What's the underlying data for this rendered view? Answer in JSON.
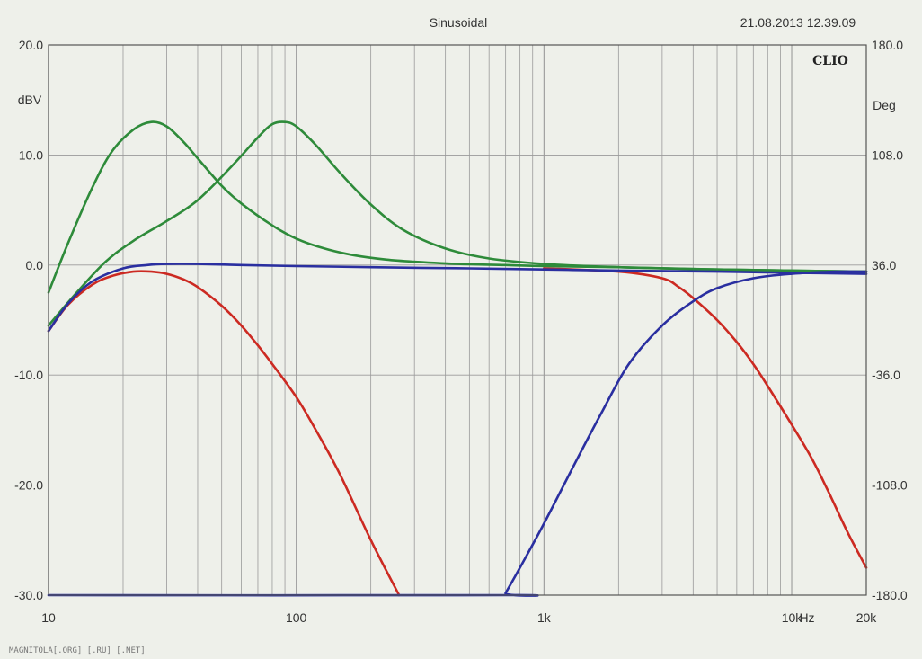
{
  "header": {
    "title": "Sinusoidal",
    "timestamp": "21.08.2013 12.39.09",
    "logo": "CLIO"
  },
  "footer": {
    "watermark": "MAGNITOLA[.ORG] [.RU] [.NET]"
  },
  "colors": {
    "background": "#eef0ea",
    "grid": "#9a9a9a",
    "green": "#2e8b3a",
    "red": "#cc2a22",
    "blue": "#2a2fa0"
  },
  "chart_data": {
    "type": "line",
    "x_scale": "log",
    "xlim": [
      10,
      20000
    ],
    "ylim": [
      -30,
      20
    ],
    "y2lim": [
      -180,
      180
    ],
    "ylabel": "dBV",
    "y2label": "Deg",
    "xunit": "Hz",
    "x_ticks": [
      {
        "value": 10,
        "label": "10"
      },
      {
        "value": 100,
        "label": "100"
      },
      {
        "value": 1000,
        "label": "1k"
      },
      {
        "value": 10000,
        "label": "10k"
      },
      {
        "value": 20000,
        "label": "20k"
      }
    ],
    "y_ticks": [
      {
        "value": 20,
        "label": "20.0"
      },
      {
        "value": 10,
        "label": "10.0"
      },
      {
        "value": 0,
        "label": "0.0"
      },
      {
        "value": -10,
        "label": "-10.0"
      },
      {
        "value": -20,
        "label": "-20.0"
      },
      {
        "value": -30,
        "label": "-30.0"
      }
    ],
    "y2_ticks": [
      {
        "value": 180,
        "label": "180.0"
      },
      {
        "value": 108,
        "label": "108.0"
      },
      {
        "value": 36,
        "label": "36.0"
      },
      {
        "value": -36,
        "label": "-36.0"
      },
      {
        "value": -108,
        "label": "-108.0"
      },
      {
        "value": -180,
        "label": "-180.0"
      }
    ],
    "grid": true,
    "series": [
      {
        "color": "green",
        "x": [
          10,
          12,
          15,
          18,
          22,
          26,
          30,
          35,
          40,
          50,
          60,
          80,
          100,
          130,
          170,
          230,
          300,
          450,
          700,
          1000,
          2000,
          5000,
          20000
        ],
        "y": [
          -2.5,
          2,
          7,
          10.3,
          12.3,
          13,
          12.6,
          11.2,
          9.7,
          7.2,
          5.6,
          3.6,
          2.4,
          1.5,
          0.9,
          0.5,
          0.3,
          0.1,
          0,
          -0.1,
          -0.2,
          -0.4,
          -0.6
        ]
      },
      {
        "color": "green",
        "x": [
          10,
          13,
          17,
          22,
          30,
          40,
          55,
          70,
          80,
          90,
          100,
          120,
          150,
          200,
          270,
          400,
          600,
          1000,
          2000,
          5000,
          20000
        ],
        "y": [
          -5.5,
          -2.5,
          0.3,
          2.2,
          4,
          5.9,
          9,
          11.6,
          12.8,
          13,
          12.6,
          10.9,
          8.4,
          5.5,
          3.2,
          1.5,
          0.6,
          0.1,
          -0.2,
          -0.4,
          -0.6
        ]
      },
      {
        "color": "red",
        "x": [
          10,
          12,
          15,
          18,
          22,
          26,
          30,
          35,
          40,
          50,
          60,
          70,
          80,
          100,
          120,
          150,
          200,
          260
        ],
        "y": [
          -6,
          -3.6,
          -1.8,
          -1,
          -0.6,
          -0.6,
          -0.8,
          -1.3,
          -2,
          -3.7,
          -5.5,
          -7.3,
          -9,
          -12,
          -15,
          -19,
          -25,
          -30
        ]
      },
      {
        "color": "red",
        "x": [
          1000,
          2000,
          3000,
          3500,
          4000,
          5000,
          6000,
          7000,
          8000,
          10000,
          12000,
          14000,
          17000,
          20000
        ],
        "y": [
          -0.3,
          -0.6,
          -1.2,
          -2,
          -3,
          -5,
          -7,
          -9,
          -11,
          -14.5,
          -17.5,
          -20.5,
          -24.5,
          -27.5
        ]
      },
      {
        "color": "blue",
        "x": [
          10,
          12,
          15,
          20,
          25,
          30,
          40,
          60,
          100,
          200,
          500,
          1000,
          2000,
          5000,
          10000,
          20000
        ],
        "y": [
          -6,
          -3.5,
          -1.5,
          -0.3,
          0,
          0.1,
          0.1,
          0,
          -0.1,
          -0.2,
          -0.3,
          -0.4,
          -0.5,
          -0.6,
          -0.7,
          -0.8
        ]
      },
      {
        "color": "blue",
        "x": [
          10,
          690,
          700,
          800,
          1000,
          1300,
          1700,
          2200,
          3000,
          4000,
          5000,
          7000,
          10000,
          15000,
          20000
        ],
        "y": [
          -30,
          -30,
          -29.8,
          -27.5,
          -23.5,
          -18.5,
          -13.5,
          -9,
          -5.5,
          -3.3,
          -2.1,
          -1.2,
          -0.8,
          -0.6,
          -0.6
        ]
      }
    ]
  }
}
